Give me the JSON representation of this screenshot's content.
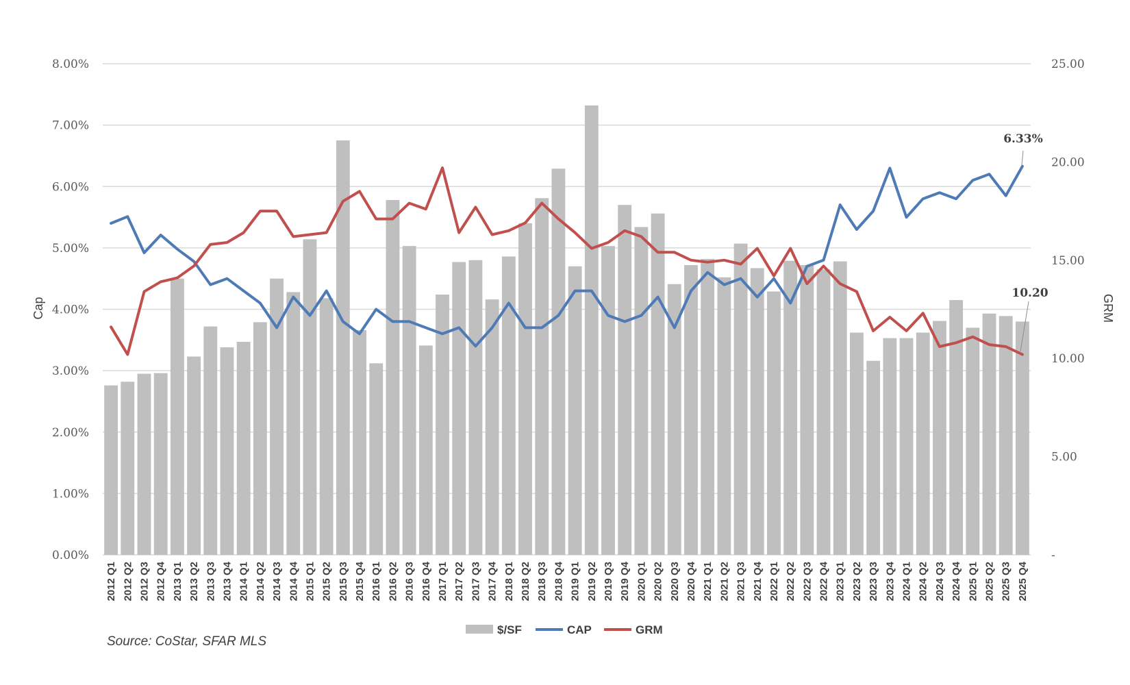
{
  "chart_data": {
    "type": "bar+line",
    "categories": [
      "2012 Q1",
      "2012 Q2",
      "2012 Q3",
      "2012 Q4",
      "2013 Q1",
      "2013 Q2",
      "2013 Q3",
      "2013 Q4",
      "2014 Q1",
      "2014 Q2",
      "2014 Q3",
      "2014 Q4",
      "2015 Q1",
      "2015 Q2",
      "2015 Q3",
      "2015 Q4",
      "2016 Q1",
      "2016 Q2",
      "2016 Q3",
      "2016 Q4",
      "2017 Q1",
      "2017 Q2",
      "2017 Q3",
      "2017 Q4",
      "2018 Q1",
      "2018 Q2",
      "2018 Q3",
      "2018 Q4",
      "2019 Q1",
      "2019 Q2",
      "2019 Q3",
      "2019 Q4",
      "2020 Q1",
      "2020 Q2",
      "2020 Q3",
      "2020 Q4",
      "2021 Q1",
      "2021 Q2",
      "2021 Q3",
      "2021 Q4",
      "2022 Q1",
      "2022 Q2",
      "2022 Q3",
      "2022 Q4",
      "2023 Q1",
      "2023 Q2",
      "2023 Q3",
      "2023 Q4",
      "2024 Q1",
      "2024 Q2",
      "2024 Q3",
      "2024 Q4",
      "2025 Q1",
      "2025 Q2",
      "2025 Q3",
      "2025 Q4"
    ],
    "series": [
      {
        "name": "$/SF",
        "type": "bar",
        "axis": "left",
        "color": "#bfbfbf",
        "values": [
          2.76,
          2.82,
          2.95,
          2.96,
          4.5,
          3.23,
          3.72,
          3.38,
          3.47,
          3.79,
          4.5,
          4.28,
          5.14,
          4.18,
          6.75,
          3.66,
          3.12,
          5.78,
          5.03,
          3.41,
          4.24,
          4.77,
          4.8,
          4.16,
          4.86,
          5.4,
          5.81,
          6.29,
          4.7,
          7.32,
          5.03,
          5.7,
          5.34,
          5.56,
          4.41,
          4.72,
          4.82,
          4.52,
          5.07,
          4.67,
          4.29,
          4.79,
          4.72,
          4.65,
          4.78,
          3.62,
          3.16,
          3.53,
          3.53,
          3.62,
          3.81,
          4.15,
          3.7,
          3.93,
          3.89,
          3.8
        ]
      },
      {
        "name": "CAP",
        "type": "line",
        "axis": "left",
        "color": "#4e7ab5",
        "values": [
          5.4,
          5.51,
          4.92,
          5.21,
          4.98,
          4.78,
          4.4,
          4.5,
          4.3,
          4.1,
          3.7,
          4.2,
          3.9,
          4.3,
          3.8,
          3.6,
          4.0,
          3.8,
          3.8,
          3.7,
          3.6,
          3.7,
          3.4,
          3.7,
          4.1,
          3.7,
          3.7,
          3.9,
          4.3,
          4.3,
          3.9,
          3.8,
          3.9,
          4.2,
          3.7,
          4.3,
          4.6,
          4.4,
          4.5,
          4.2,
          4.5,
          4.1,
          4.7,
          4.8,
          5.7,
          5.3,
          5.6,
          6.3,
          5.5,
          5.8,
          5.9,
          5.8,
          6.1,
          6.2,
          5.85,
          6.33
        ]
      },
      {
        "name": "GRM",
        "type": "line",
        "axis": "right",
        "color": "#c0504d",
        "values": [
          11.6,
          10.2,
          13.4,
          13.9,
          14.1,
          14.7,
          15.8,
          15.9,
          16.4,
          17.5,
          17.5,
          16.2,
          16.3,
          16.4,
          18.0,
          18.5,
          17.1,
          17.1,
          17.9,
          17.6,
          19.7,
          16.4,
          17.7,
          16.3,
          16.5,
          16.9,
          17.9,
          17.1,
          16.4,
          15.6,
          15.9,
          16.5,
          16.2,
          15.4,
          15.4,
          15.0,
          14.9,
          15.0,
          14.8,
          15.6,
          14.2,
          15.6,
          13.8,
          14.7,
          13.8,
          13.4,
          11.4,
          12.1,
          11.4,
          12.3,
          10.6,
          10.8,
          11.1,
          10.7,
          10.6,
          10.2
        ]
      }
    ],
    "y_left": {
      "label": "Cap",
      "ylim": [
        0,
        8
      ],
      "ticks": [
        "0.00%",
        "1.00%",
        "2.00%",
        "3.00%",
        "4.00%",
        "5.00%",
        "6.00%",
        "7.00%",
        "8.00%"
      ]
    },
    "y_right": {
      "label": "GRM",
      "ylim": [
        0,
        25
      ],
      "ticks": [
        "-",
        "5.00",
        "10.00",
        "15.00",
        "20.00",
        "25.00"
      ]
    },
    "annotations": [
      {
        "text": "6.33%",
        "series": "CAP",
        "category": "2025 Q4"
      },
      {
        "text": "10.20",
        "series": "GRM",
        "category": "2025 Q4"
      }
    ],
    "legend": {
      "position": "bottom",
      "entries": [
        "$/SF",
        "CAP",
        "GRM"
      ]
    },
    "grid": true
  },
  "source": "Source: CoStar, SFAR MLS"
}
